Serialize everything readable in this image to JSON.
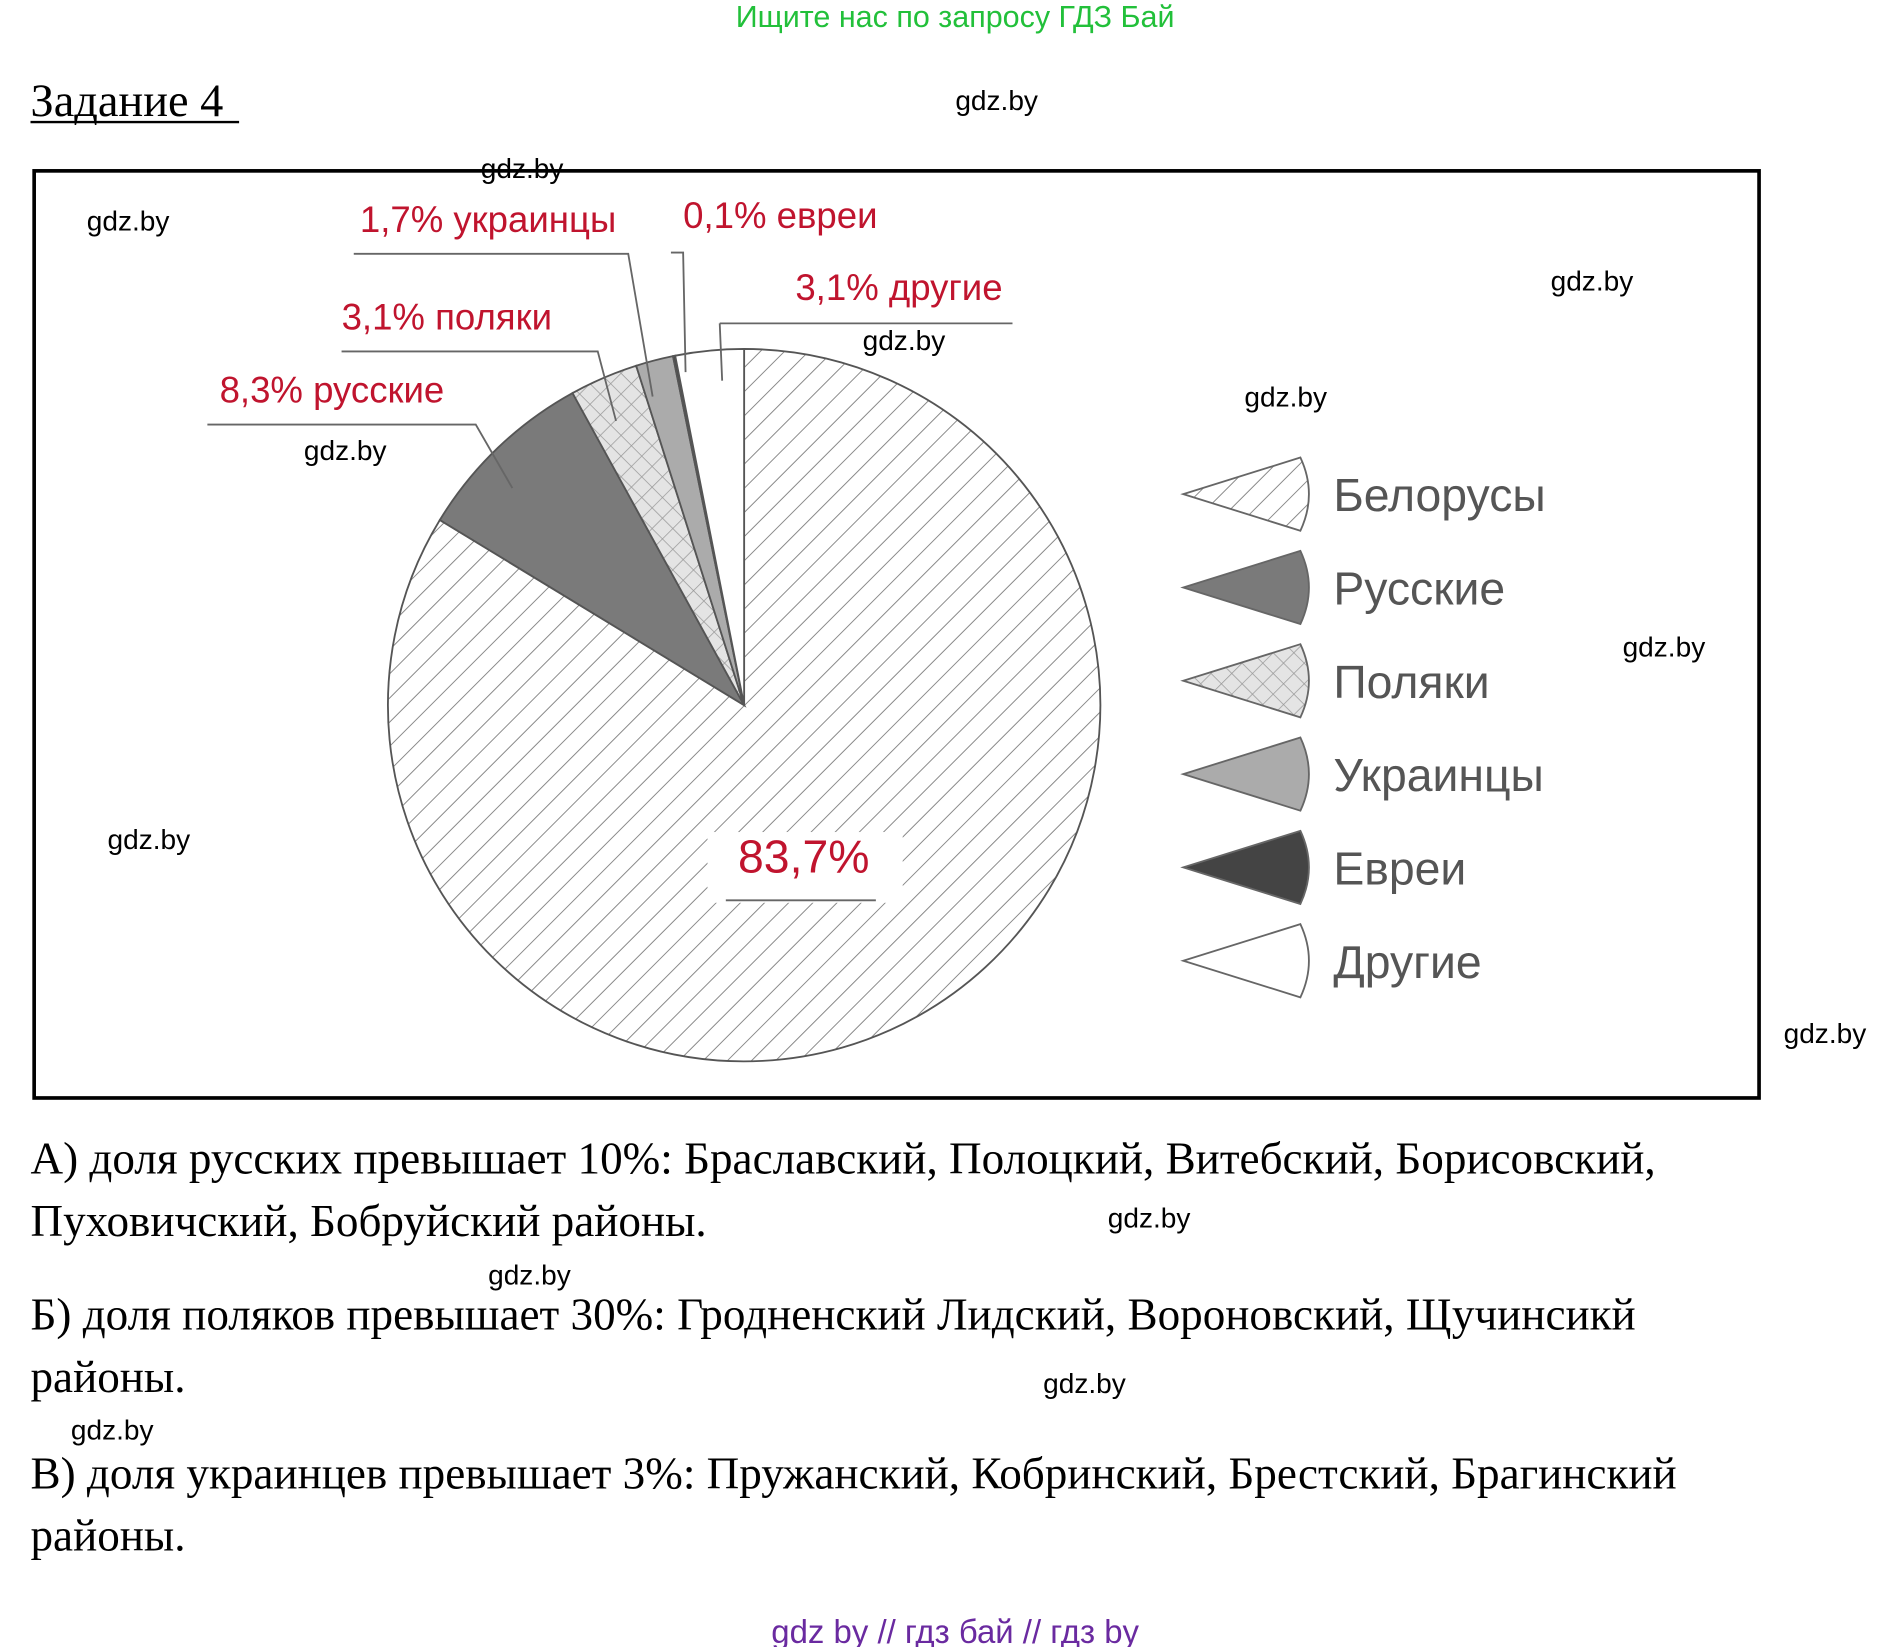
{
  "header": {
    "banner": "Ищите нас по запросу ГДЗ Бай",
    "title": "Задание 4"
  },
  "chart": {
    "type": "pie",
    "categories": [
      "Белорусы",
      "Русские",
      "Поляки",
      "Украинцы",
      "Евреи",
      "Другие"
    ],
    "values": [
      83.7,
      8.3,
      3.1,
      1.7,
      0.1,
      3.1
    ],
    "value_labels": [
      "83,7%",
      "8,3% русские",
      "3,1% поляки",
      "1,7% украинцы",
      "0,1% евреи",
      "3,1% другие"
    ],
    "colors": [
      "hatch",
      "#7a7a7a",
      "cross",
      "#ababab",
      "#444444",
      "#ffffff"
    ]
  },
  "answers": [
    [
      "А) доля русских превышает 10%: Браславский, Полоцкий, Витебский, Борисовский,",
      "Пуховичский, Бобруйский районы."
    ],
    [
      "Б) доля поляков превышает 30%: Гродненский Лидский, Вороновский, Щучинсикй",
      "районы."
    ],
    [
      "В) доля украинцев превышает 3%: Пружанский, Кобринский, Брестский, Брагинский",
      "районы."
    ]
  ],
  "watermarks": [
    "gdz.by",
    "gdz.by",
    "gdz.by",
    "gdz.by",
    "gdz.by",
    "gdz.by",
    "gdz.by",
    "gdz.by",
    "gdz.by",
    "gdz.by",
    "gdz.by",
    "gdz.by",
    "gdz.by",
    "gdz.by"
  ],
  "footer": "gdz by  //  гдз бай  //  гдз by"
}
